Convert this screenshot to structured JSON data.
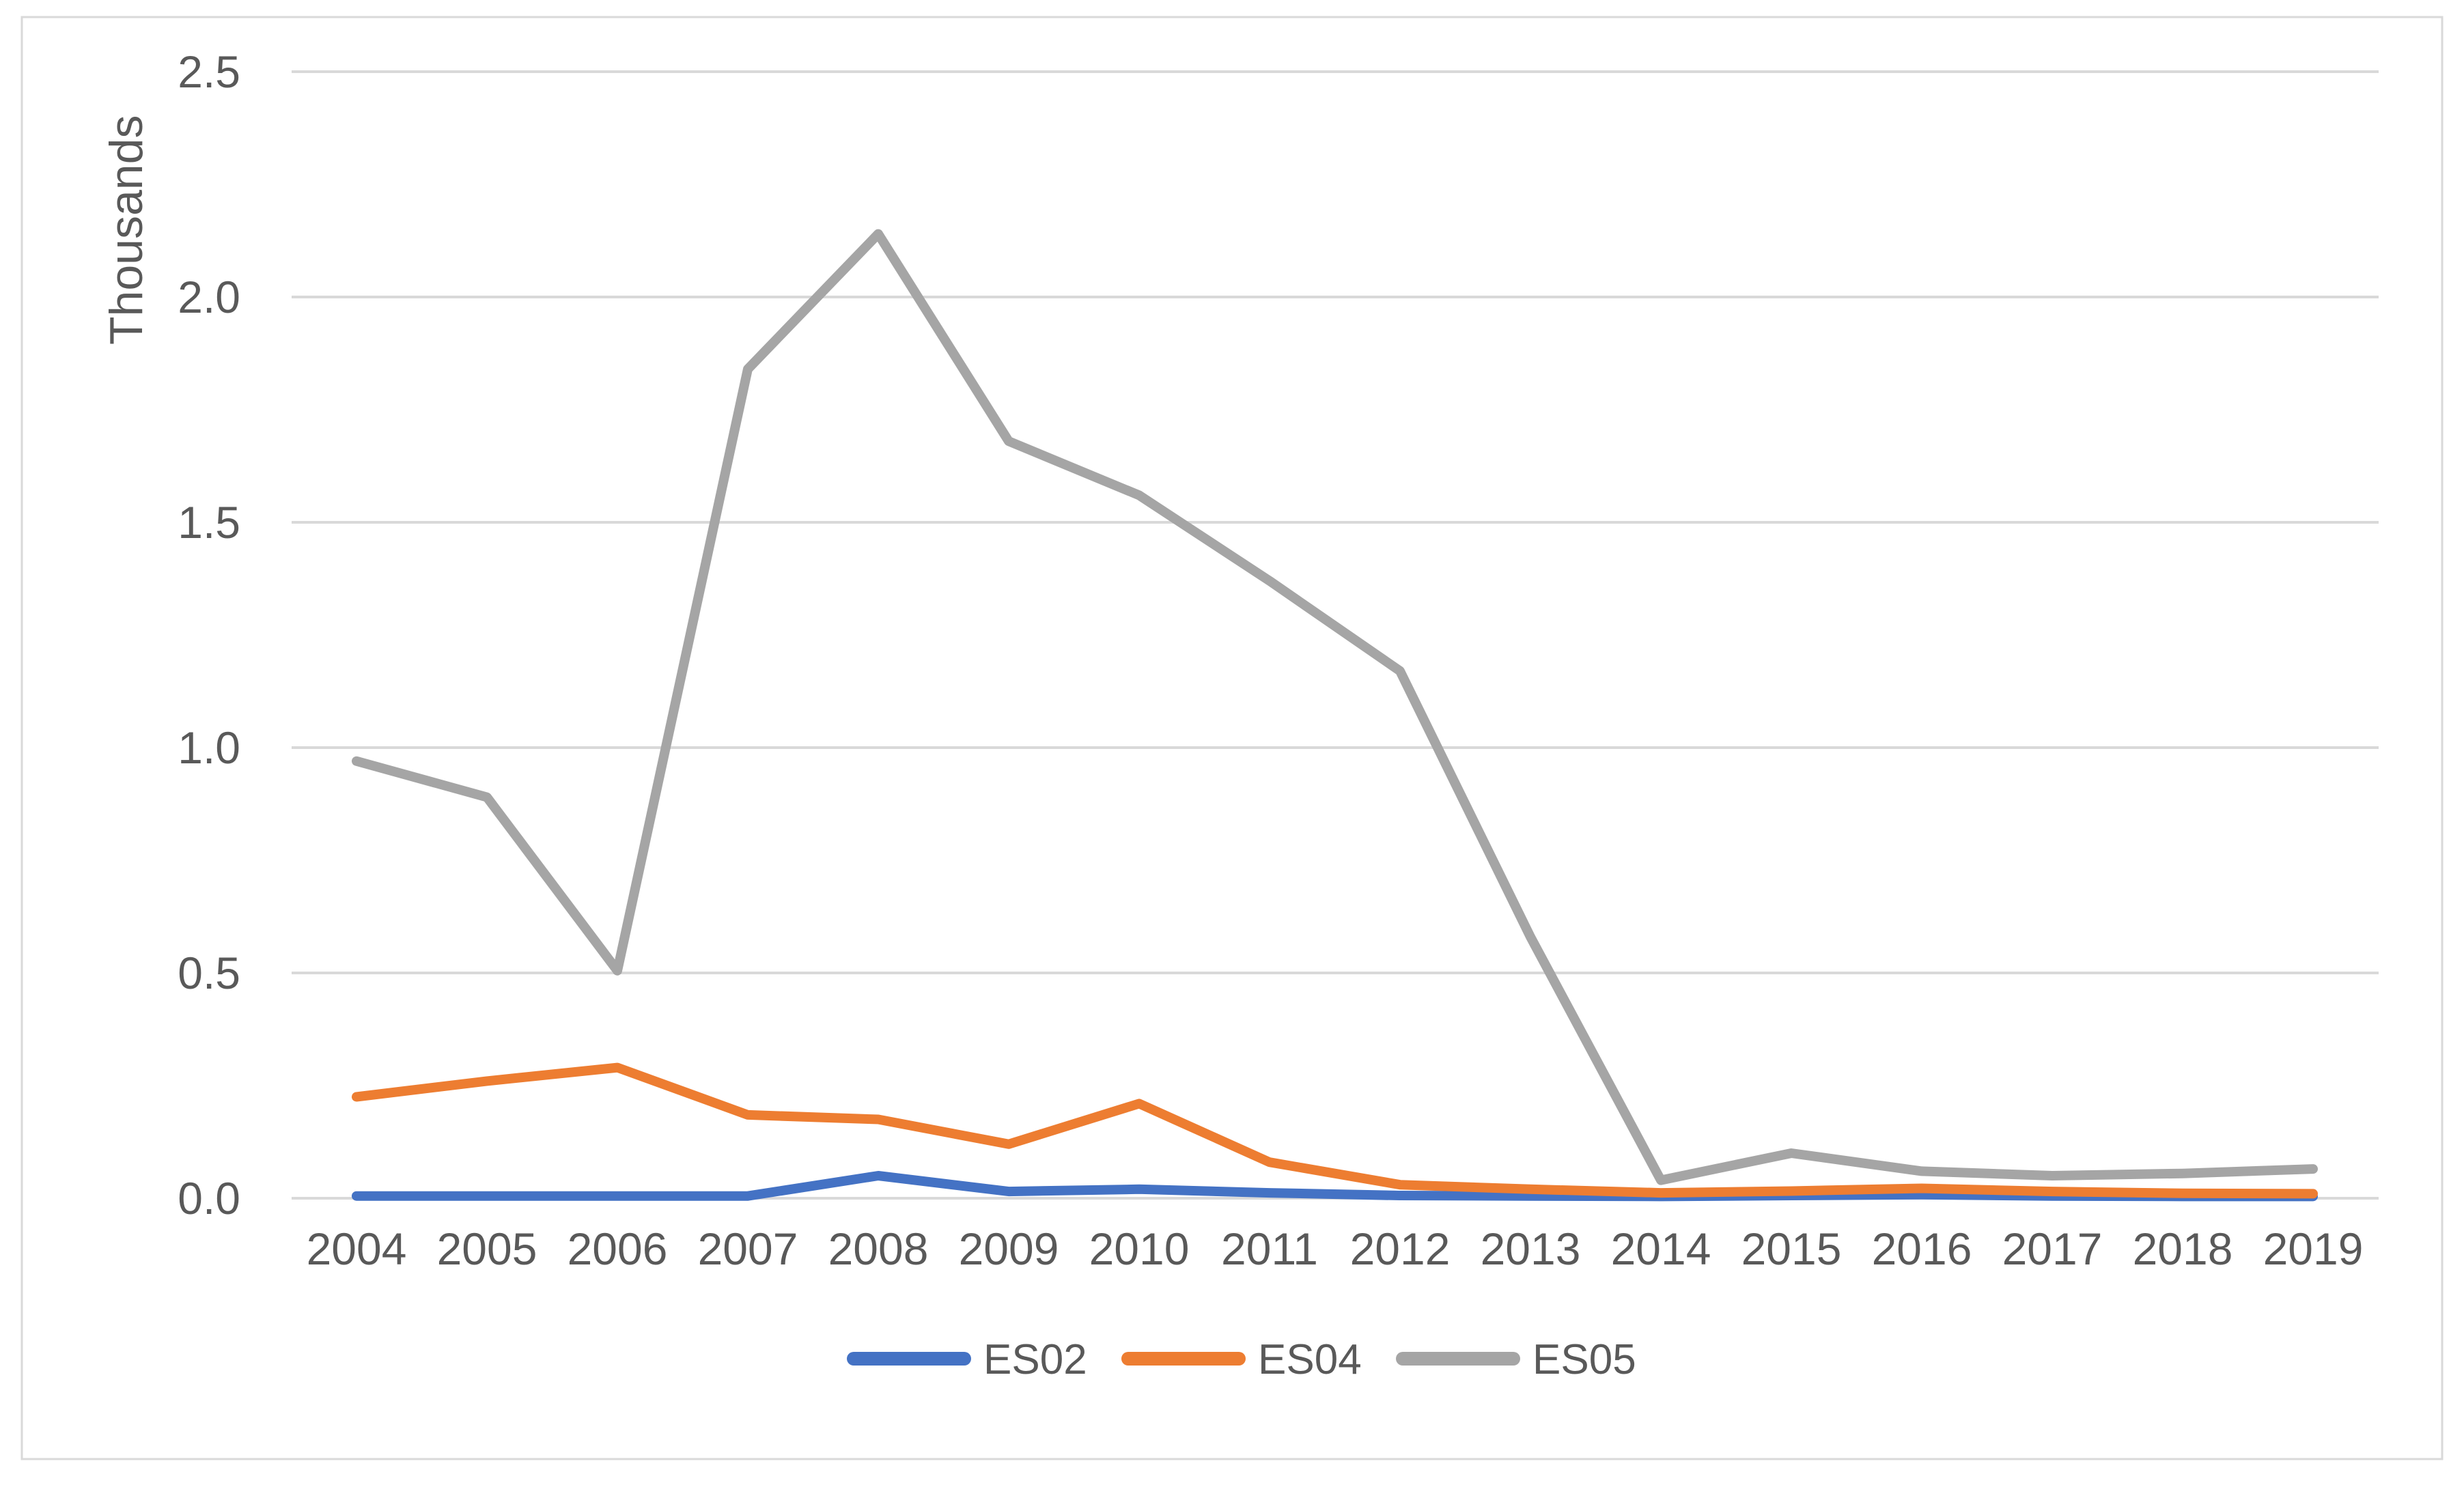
{
  "chart_data": {
    "type": "line",
    "title": "",
    "unit_label": "Thousands",
    "categories": [
      "2004",
      "2005",
      "2006",
      "2007",
      "2008",
      "2009",
      "2010",
      "2011",
      "2012",
      "2013",
      "2014",
      "2015",
      "2016",
      "2017",
      "2018",
      "2019"
    ],
    "series": [
      {
        "name": "ES02",
        "color": "#4472C4",
        "values": [
          0.005,
          0.005,
          0.005,
          0.005,
          0.05,
          0.015,
          0.02,
          0.012,
          0.006,
          0.005,
          0.004,
          0.006,
          0.008,
          0.005,
          0.004,
          0.004
        ]
      },
      {
        "name": "ES04",
        "color": "#ED7D31",
        "values": [
          0.225,
          0.26,
          0.29,
          0.185,
          0.175,
          0.12,
          0.21,
          0.08,
          0.03,
          0.02,
          0.012,
          0.016,
          0.022,
          0.015,
          0.011,
          0.01
        ]
      },
      {
        "name": "ES05",
        "color": "#A5A5A5",
        "values": [
          0.97,
          0.89,
          0.505,
          1.84,
          2.14,
          1.68,
          1.56,
          1.37,
          1.17,
          0.58,
          0.04,
          0.1,
          0.06,
          0.05,
          0.055,
          0.065
        ]
      }
    ],
    "y_axis": {
      "min": 0,
      "max": 2.5,
      "step": 0.5,
      "tick_labels": [
        "0.0",
        "0.5",
        "1.0",
        "1.5",
        "2.0",
        "2.5"
      ]
    },
    "x_axis": {
      "tick_labels": [
        "2004",
        "2005",
        "2006",
        "2007",
        "2008",
        "2009",
        "2010",
        "2011",
        "2012",
        "2013",
        "2014",
        "2015",
        "2016",
        "2017",
        "2018",
        "2019"
      ]
    },
    "legend": {
      "entries": [
        "ES02",
        "ES04",
        "ES05"
      ],
      "position": "bottom"
    },
    "grid": true
  },
  "styles": {
    "background": "#FFFFFF",
    "grid_color": "#D9D9D9",
    "border_color": "#D9D9D9",
    "text_color": "#595959"
  }
}
